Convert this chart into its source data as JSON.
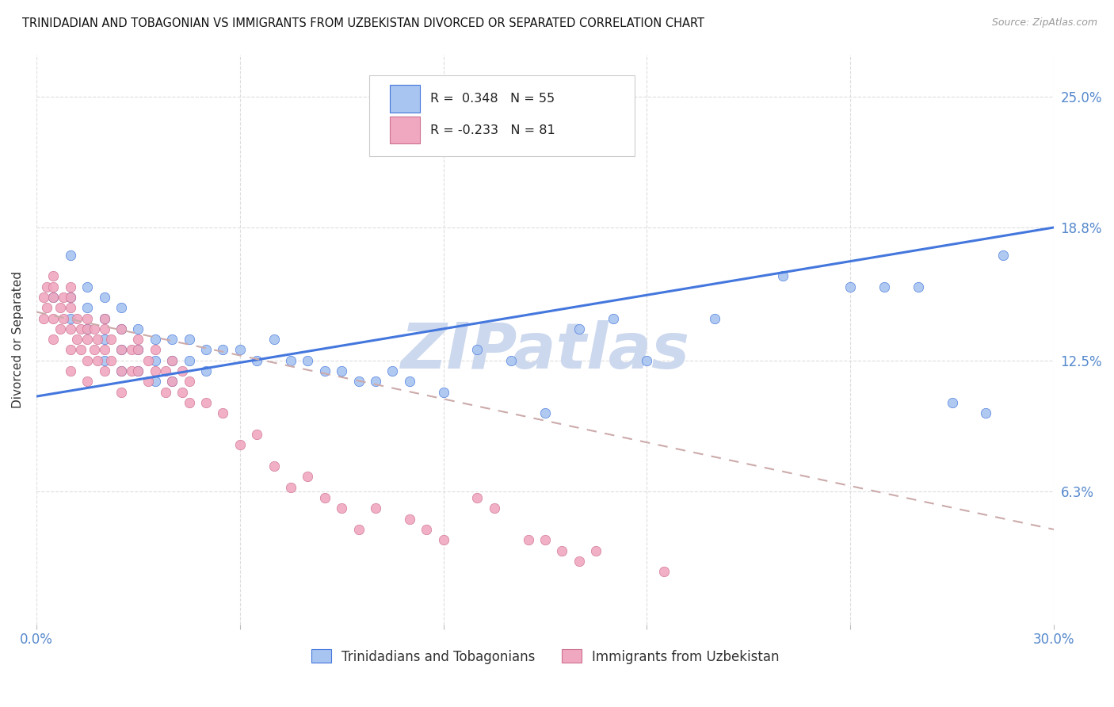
{
  "title": "TRINIDADIAN AND TOBAGONIAN VS IMMIGRANTS FROM UZBEKISTAN DIVORCED OR SEPARATED CORRELATION CHART",
  "source": "Source: ZipAtlas.com",
  "ylabel": "Divorced or Separated",
  "ytick_labels": [
    "25.0%",
    "18.8%",
    "12.5%",
    "6.3%"
  ],
  "ytick_values": [
    0.25,
    0.188,
    0.125,
    0.063
  ],
  "xlim": [
    0.0,
    0.3
  ],
  "ylim": [
    0.0,
    0.27
  ],
  "r_blue": 0.348,
  "n_blue": 55,
  "r_pink": -0.233,
  "n_pink": 81,
  "blue_color": "#a8c4f0",
  "pink_color": "#f0a8c0",
  "blue_line_color": "#4477dd",
  "pink_line_color": "#d09090",
  "watermark": "ZIPatlas",
  "legend_label_blue": "Trinidadians and Tobagonians",
  "legend_label_pink": "Immigrants from Uzbekistan",
  "blue_scatter_x": [
    0.005,
    0.01,
    0.01,
    0.01,
    0.015,
    0.015,
    0.015,
    0.02,
    0.02,
    0.02,
    0.02,
    0.025,
    0.025,
    0.025,
    0.025,
    0.03,
    0.03,
    0.03,
    0.035,
    0.035,
    0.035,
    0.04,
    0.04,
    0.04,
    0.045,
    0.045,
    0.05,
    0.05,
    0.055,
    0.06,
    0.065,
    0.07,
    0.075,
    0.08,
    0.085,
    0.09,
    0.095,
    0.1,
    0.105,
    0.11,
    0.12,
    0.13,
    0.14,
    0.15,
    0.16,
    0.17,
    0.18,
    0.2,
    0.22,
    0.24,
    0.25,
    0.26,
    0.27,
    0.28,
    0.285
  ],
  "blue_scatter_y": [
    0.155,
    0.175,
    0.155,
    0.145,
    0.16,
    0.15,
    0.14,
    0.155,
    0.145,
    0.135,
    0.125,
    0.15,
    0.14,
    0.13,
    0.12,
    0.14,
    0.13,
    0.12,
    0.135,
    0.125,
    0.115,
    0.135,
    0.125,
    0.115,
    0.135,
    0.125,
    0.13,
    0.12,
    0.13,
    0.13,
    0.125,
    0.135,
    0.125,
    0.125,
    0.12,
    0.12,
    0.115,
    0.115,
    0.12,
    0.115,
    0.11,
    0.13,
    0.125,
    0.1,
    0.14,
    0.145,
    0.125,
    0.145,
    0.165,
    0.16,
    0.16,
    0.16,
    0.105,
    0.1,
    0.175
  ],
  "pink_scatter_x": [
    0.002,
    0.002,
    0.003,
    0.003,
    0.005,
    0.005,
    0.005,
    0.005,
    0.005,
    0.007,
    0.007,
    0.008,
    0.008,
    0.01,
    0.01,
    0.01,
    0.01,
    0.01,
    0.01,
    0.012,
    0.012,
    0.013,
    0.013,
    0.015,
    0.015,
    0.015,
    0.015,
    0.015,
    0.017,
    0.017,
    0.018,
    0.018,
    0.02,
    0.02,
    0.02,
    0.02,
    0.022,
    0.022,
    0.025,
    0.025,
    0.025,
    0.025,
    0.028,
    0.028,
    0.03,
    0.03,
    0.03,
    0.033,
    0.033,
    0.035,
    0.035,
    0.038,
    0.038,
    0.04,
    0.04,
    0.043,
    0.043,
    0.045,
    0.045,
    0.05,
    0.055,
    0.06,
    0.065,
    0.07,
    0.075,
    0.08,
    0.085,
    0.09,
    0.095,
    0.1,
    0.11,
    0.115,
    0.12,
    0.13,
    0.135,
    0.145,
    0.15,
    0.155,
    0.16,
    0.165,
    0.185
  ],
  "pink_scatter_y": [
    0.155,
    0.145,
    0.16,
    0.15,
    0.165,
    0.16,
    0.155,
    0.145,
    0.135,
    0.15,
    0.14,
    0.155,
    0.145,
    0.16,
    0.155,
    0.15,
    0.14,
    0.13,
    0.12,
    0.145,
    0.135,
    0.14,
    0.13,
    0.145,
    0.14,
    0.135,
    0.125,
    0.115,
    0.14,
    0.13,
    0.135,
    0.125,
    0.145,
    0.14,
    0.13,
    0.12,
    0.135,
    0.125,
    0.14,
    0.13,
    0.12,
    0.11,
    0.13,
    0.12,
    0.135,
    0.13,
    0.12,
    0.125,
    0.115,
    0.13,
    0.12,
    0.12,
    0.11,
    0.125,
    0.115,
    0.12,
    0.11,
    0.115,
    0.105,
    0.105,
    0.1,
    0.085,
    0.09,
    0.075,
    0.065,
    0.07,
    0.06,
    0.055,
    0.045,
    0.055,
    0.05,
    0.045,
    0.04,
    0.06,
    0.055,
    0.04,
    0.04,
    0.035,
    0.03,
    0.035,
    0.025
  ],
  "blue_line_x": [
    0.0,
    0.3
  ],
  "blue_line_y": [
    0.108,
    0.188
  ],
  "pink_line_x": [
    0.0,
    0.3
  ],
  "pink_line_y": [
    0.148,
    0.045
  ],
  "grid_color": "#dddddd",
  "title_fontsize": 10.5,
  "watermark_color": "#ccd8ee",
  "axis_label_color": "#5588cc"
}
